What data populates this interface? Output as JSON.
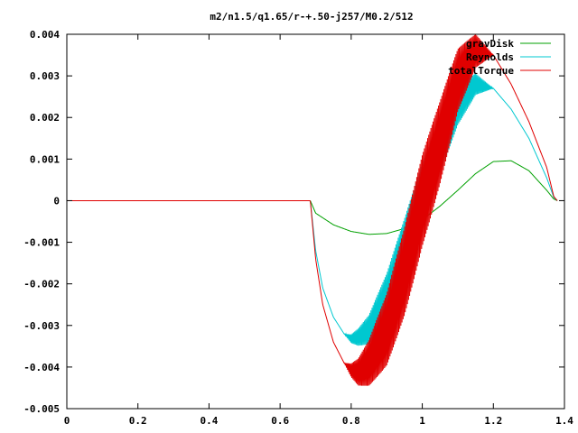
{
  "chart_data": {
    "type": "line",
    "title": "m2/n1.5/q1.65/r-+.50-j257/M0.2/512",
    "xlabel": "",
    "ylabel": "",
    "xlim": [
      0,
      1.4
    ],
    "ylim": [
      -0.005,
      0.004
    ],
    "grid": false,
    "legend_position": "top-right",
    "x_ticks": [
      {
        "value": 0,
        "label": "0"
      },
      {
        "value": 0.2,
        "label": "0.2"
      },
      {
        "value": 0.4,
        "label": "0.4"
      },
      {
        "value": 0.6,
        "label": "0.6"
      },
      {
        "value": 0.8,
        "label": "0.8"
      },
      {
        "value": 1.0,
        "label": "1"
      },
      {
        "value": 1.2,
        "label": "1.2"
      },
      {
        "value": 1.4,
        "label": "1.4"
      }
    ],
    "y_ticks": [
      {
        "value": 0.004,
        "label": "0.004"
      },
      {
        "value": 0.003,
        "label": "0.003"
      },
      {
        "value": 0.002,
        "label": "0.002"
      },
      {
        "value": 0.001,
        "label": "0.001"
      },
      {
        "value": 0,
        "label": "0"
      },
      {
        "value": -0.001,
        "label": "-0.001"
      },
      {
        "value": -0.002,
        "label": "-0.002"
      },
      {
        "value": -0.003,
        "label": "-0.003"
      },
      {
        "value": -0.004,
        "label": "-0.004"
      },
      {
        "value": -0.005,
        "label": "-0.005"
      }
    ],
    "series": [
      {
        "name": "gravDisk",
        "color": "#00a000",
        "x": [
          0,
          0.685,
          0.7,
          0.75,
          0.8,
          0.85,
          0.9,
          0.95,
          1.0,
          1.05,
          1.1,
          1.15,
          1.2,
          1.25,
          1.3,
          1.35,
          1.37,
          1.38
        ],
        "y": [
          0,
          0,
          -0.0003,
          -0.00058,
          -0.00074,
          -0.00081,
          -0.00079,
          -0.00067,
          -0.00046,
          -0.00013,
          0.00025,
          0.00065,
          0.00094,
          0.00096,
          0.00072,
          0.00025,
          4e-05,
          0
        ]
      },
      {
        "name": "Reynolds",
        "color": "#00c8d0",
        "x": [
          0,
          0.685,
          0.7,
          0.72,
          0.75,
          0.78,
          0.8,
          0.82,
          0.85,
          0.9,
          0.95,
          1.0,
          1.05,
          1.1,
          1.15,
          1.2,
          1.25,
          1.3,
          1.35,
          1.37,
          1.38
        ],
        "y": [
          0,
          0,
          -0.0012,
          -0.0021,
          -0.0028,
          -0.0032,
          -0.00332,
          -0.00328,
          -0.0031,
          -0.0023,
          -0.0011,
          0.0002,
          0.0013,
          0.0023,
          0.0028,
          0.0027,
          0.0022,
          0.0015,
          0.00055,
          8e-05,
          0
        ]
      },
      {
        "name": "totalTorque",
        "color": "#e00000",
        "x": [
          0,
          0.685,
          0.7,
          0.72,
          0.75,
          0.78,
          0.8,
          0.82,
          0.85,
          0.9,
          0.95,
          1.0,
          1.05,
          1.1,
          1.15,
          1.2,
          1.25,
          1.3,
          1.35,
          1.37,
          1.38
        ],
        "y": [
          0,
          0,
          -0.0014,
          -0.0025,
          -0.0034,
          -0.0039,
          -0.00408,
          -0.00412,
          -0.0039,
          -0.0031,
          -0.0017,
          0.0,
          0.0014,
          0.0029,
          0.0036,
          0.0035,
          0.0028,
          0.0019,
          0.0008,
          0.0001,
          0
        ]
      }
    ]
  }
}
